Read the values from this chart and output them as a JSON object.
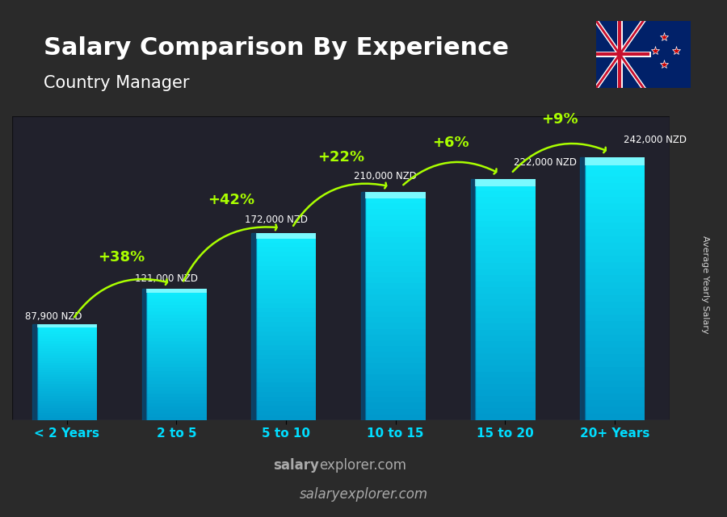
{
  "title": "Salary Comparison By Experience",
  "subtitle": "Country Manager",
  "categories": [
    "< 2 Years",
    "2 to 5",
    "5 to 10",
    "10 to 15",
    "15 to 20",
    "20+ Years"
  ],
  "values": [
    87900,
    121000,
    172000,
    210000,
    222000,
    242000
  ],
  "value_labels": [
    "87,900 NZD",
    "121,000 NZD",
    "172,000 NZD",
    "210,000 NZD",
    "222,000 NZD",
    "242,000 NZD"
  ],
  "pct_labels": [
    "+38%",
    "+42%",
    "+22%",
    "+6%",
    "+9%"
  ],
  "bar_color_top": "#00d4ff",
  "bar_color_bottom": "#007acc",
  "bar_color_mid": "#00aaee",
  "background_color": "#1a1a2e",
  "title_color": "#ffffff",
  "subtitle_color": "#ffffff",
  "label_color": "#ffffff",
  "pct_color": "#aaff00",
  "xlabel_color": "#00ddff",
  "watermark": "salaryexplorer.com",
  "watermark_color": "#cccccc",
  "side_label": "Average Yearly Salary",
  "ylim_max": 280000,
  "figwidth": 9.0,
  "figheight": 6.41
}
